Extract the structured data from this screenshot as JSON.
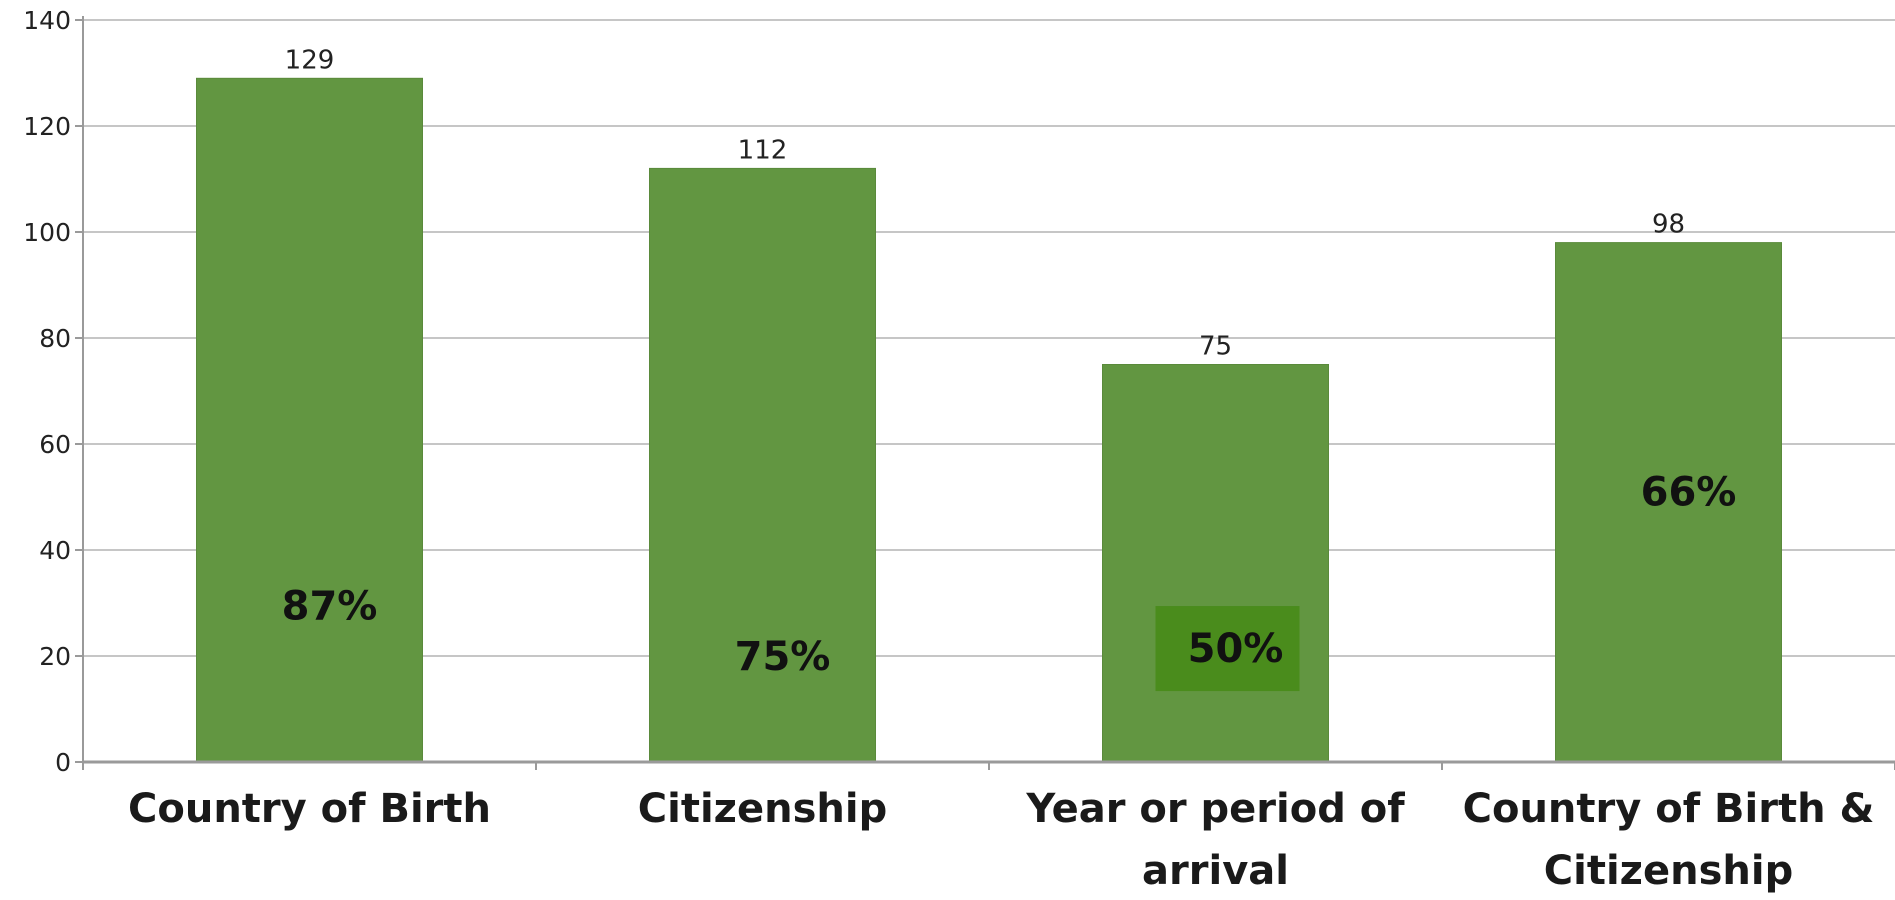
{
  "chart_data": {
    "type": "bar",
    "title": "",
    "xlabel": "",
    "ylabel": "",
    "ylim": [
      0,
      140
    ],
    "yticks": [
      0,
      20,
      40,
      60,
      80,
      100,
      120,
      140
    ],
    "grid": true,
    "legend": "none",
    "categories": [
      [
        "Country of Birth"
      ],
      [
        "Citizenship"
      ],
      [
        "Year or period of",
        "arrival"
      ],
      [
        "Country of Birth &",
        "Citizenship"
      ]
    ],
    "values": [
      129,
      112,
      75,
      98
    ],
    "percent_labels": [
      "87%",
      "75%",
      "50%",
      "66%"
    ],
    "percent_label_levels": [
      29.5,
      20,
      21.5,
      51
    ],
    "highlighted_percent": 2,
    "colors": {
      "bar": "#629641",
      "bar_edge": "#5a8a3b",
      "highlight_box": "#4a8c1c",
      "grid": "#c6c6c6",
      "axis": "#9a9a9a"
    }
  }
}
